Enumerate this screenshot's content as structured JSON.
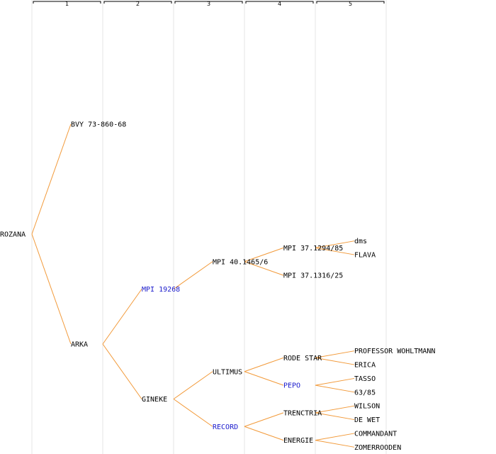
{
  "generations": [
    "1",
    "2",
    "3",
    "4",
    "5"
  ],
  "colors": {
    "edge": "#f29a3a",
    "guide": "#e6e6e6",
    "text": "#000000",
    "link_text": "#1a1acc",
    "header_line": "#000000"
  },
  "tree": {
    "label": "ROZANA",
    "children": [
      {
        "label": "BVY 73-860-68"
      },
      {
        "label": "ARKA",
        "children": [
          {
            "label": "MPI 19268",
            "link": true,
            "children": [
              {
                "label": "MPI 40.1465/6",
                "children": [
                  {
                    "label": "MPI 37.1294/85",
                    "children": [
                      {
                        "label": "dms"
                      },
                      {
                        "label": "FLAVA"
                      }
                    ]
                  },
                  {
                    "label": "MPI 37.1316/25"
                  }
                ]
              }
            ]
          },
          {
            "label": "GINEKE",
            "children": [
              {
                "label": "ULTIMUS",
                "children": [
                  {
                    "label": "RODE STAR",
                    "children": [
                      {
                        "label": "PROFESSOR WOHLTMANN"
                      },
                      {
                        "label": "ERICA"
                      }
                    ]
                  },
                  {
                    "label": "PEPO",
                    "link": true,
                    "children": [
                      {
                        "label": "TASSO"
                      },
                      {
                        "label": "63/85"
                      }
                    ]
                  }
                ]
              },
              {
                "label": "RECORD",
                "link": true,
                "children": [
                  {
                    "label": "TRENCTRIA",
                    "children": [
                      {
                        "label": "WILSON"
                      },
                      {
                        "label": "DE WET"
                      }
                    ]
                  },
                  {
                    "label": "ENERGIE",
                    "children": [
                      {
                        "label": "COMMANDANT"
                      },
                      {
                        "label": "ZOMERROODEN"
                      }
                    ]
                  }
                ]
              }
            ]
          }
        ]
      }
    ]
  }
}
